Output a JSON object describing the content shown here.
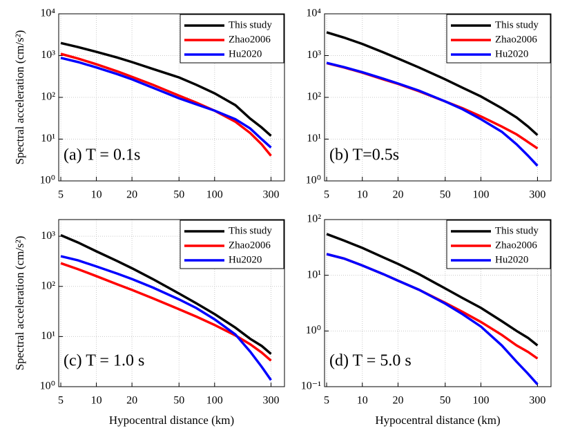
{
  "chart_data": [
    {
      "type": "line",
      "annotation": "(a) T = 0.1s",
      "ylabel": "Spectral acceleration (cm/s²)",
      "xlog": true,
      "ylog": true,
      "grid": true,
      "legend": "upper right",
      "x": [
        5,
        7,
        10,
        15,
        20,
        30,
        50,
        70,
        100,
        150,
        200,
        250,
        300
      ],
      "xlim": [
        4.8,
        390
      ],
      "ylim": [
        1,
        10000
      ],
      "xticks": [
        5,
        10,
        20,
        50,
        100,
        300
      ],
      "yticks": [
        {
          "value": 1,
          "label": "10⁰"
        },
        {
          "value": 10,
          "label": "10¹"
        },
        {
          "value": 100,
          "label": "10²"
        },
        {
          "value": 1000,
          "label": "10³"
        },
        {
          "value": 10000,
          "label": "10⁴"
        }
      ],
      "series": [
        {
          "name": "This study",
          "color": "#000000",
          "values": [
            2000,
            1600,
            1230,
            900,
            700,
            480,
            300,
            200,
            125,
            65,
            31,
            19,
            12
          ]
        },
        {
          "name": "Zhao2006",
          "color": "#ff0000",
          "values": [
            1100,
            850,
            620,
            420,
            310,
            200,
            110,
            75,
            48,
            26,
            14,
            7.5,
            4
          ]
        },
        {
          "name": "Hu2020",
          "color": "#0000ff",
          "values": [
            880,
            700,
            520,
            360,
            270,
            170,
            95,
            68,
            48,
            30,
            18,
            10,
            6.3
          ]
        }
      ]
    },
    {
      "type": "line",
      "annotation": "(b) T=0.5s",
      "xlog": true,
      "ylog": true,
      "grid": true,
      "legend": "upper right",
      "x": [
        5,
        7,
        10,
        15,
        20,
        30,
        50,
        70,
        100,
        150,
        200,
        250,
        300
      ],
      "xlim": [
        4.8,
        390
      ],
      "ylim": [
        1,
        10000
      ],
      "xticks": [
        5,
        10,
        20,
        50,
        100,
        300
      ],
      "yticks": [
        {
          "value": 1,
          "label": "10⁰"
        },
        {
          "value": 10,
          "label": "10¹"
        },
        {
          "value": 100,
          "label": "10²"
        },
        {
          "value": 1000,
          "label": "10³"
        },
        {
          "value": 10000,
          "label": "10⁴"
        }
      ],
      "series": [
        {
          "name": "This study",
          "color": "#000000",
          "values": [
            3600,
            2700,
            1900,
            1200,
            850,
            520,
            270,
            170,
            105,
            55,
            33,
            20,
            12.5
          ]
        },
        {
          "name": "Zhao2006",
          "color": "#ff0000",
          "values": [
            660,
            520,
            390,
            270,
            210,
            140,
            80,
            55,
            35,
            20,
            13,
            8.5,
            6
          ]
        },
        {
          "name": "Hu2020",
          "color": "#0000ff",
          "values": [
            670,
            530,
            400,
            280,
            215,
            145,
            80,
            52,
            30,
            15,
            7.5,
            4,
            2.3
          ]
        }
      ]
    },
    {
      "type": "line",
      "annotation": "(c) T = 1.0 s",
      "ylabel": "Spectral acceleration (cm/s²)",
      "xlabel": "Hypocentral distance (km)",
      "xlog": true,
      "ylog": true,
      "grid": true,
      "legend": "upper right",
      "x": [
        5,
        7,
        10,
        15,
        20,
        30,
        50,
        70,
        100,
        150,
        200,
        250,
        300
      ],
      "xlim": [
        4.8,
        390
      ],
      "ylim": [
        1,
        2150
      ],
      "xticks": [
        5,
        10,
        20,
        50,
        100,
        300
      ],
      "yticks": [
        {
          "value": 1,
          "label": "10⁰"
        },
        {
          "value": 10,
          "label": "10¹"
        },
        {
          "value": 100,
          "label": "10²"
        },
        {
          "value": 1000,
          "label": "10³"
        }
      ],
      "series": [
        {
          "name": "This study",
          "color": "#000000",
          "values": [
            1050,
            750,
            500,
            320,
            230,
            140,
            72,
            46,
            28,
            15,
            9,
            6.5,
            4.5
          ]
        },
        {
          "name": "Zhao2006",
          "color": "#ff0000",
          "values": [
            290,
            220,
            160,
            110,
            85,
            58,
            35,
            25,
            17,
            10.5,
            7,
            4.8,
            3.3
          ]
        },
        {
          "name": "Hu2020",
          "color": "#0000ff",
          "values": [
            400,
            330,
            250,
            180,
            140,
            95,
            55,
            37,
            22,
            11,
            5,
            2.5,
            1.35
          ]
        }
      ]
    },
    {
      "type": "line",
      "annotation": "(d) T = 5.0 s",
      "xlabel": "Hypocentral distance (km)",
      "xlog": true,
      "ylog": true,
      "grid": true,
      "legend": "upper right",
      "x": [
        5,
        7,
        10,
        15,
        20,
        30,
        50,
        70,
        100,
        150,
        200,
        250,
        300
      ],
      "xlim": [
        4.8,
        390
      ],
      "ylim": [
        0.1,
        100
      ],
      "xticks": [
        5,
        10,
        20,
        50,
        100,
        300
      ],
      "yticks": [
        {
          "value": 0.1,
          "label": "10⁻¹"
        },
        {
          "value": 1,
          "label": "10⁰"
        },
        {
          "value": 10,
          "label": "10¹"
        },
        {
          "value": 100,
          "label": "10²"
        }
      ],
      "series": [
        {
          "name": "This study",
          "color": "#000000",
          "values": [
            55,
            42,
            31,
            21,
            16,
            10.5,
            5.8,
            3.9,
            2.6,
            1.5,
            1.0,
            0.75,
            0.55
          ]
        },
        {
          "name": "Zhao2006",
          "color": "#ff0000",
          "values": [
            24,
            20,
            15,
            10.5,
            8,
            5.5,
            3.2,
            2.2,
            1.45,
            0.85,
            0.55,
            0.42,
            0.32
          ]
        },
        {
          "name": "Hu2020",
          "color": "#0000ff",
          "values": [
            24,
            20,
            15,
            10.5,
            8,
            5.5,
            3.1,
            2.0,
            1.2,
            0.55,
            0.28,
            0.17,
            0.11
          ]
        }
      ]
    }
  ]
}
